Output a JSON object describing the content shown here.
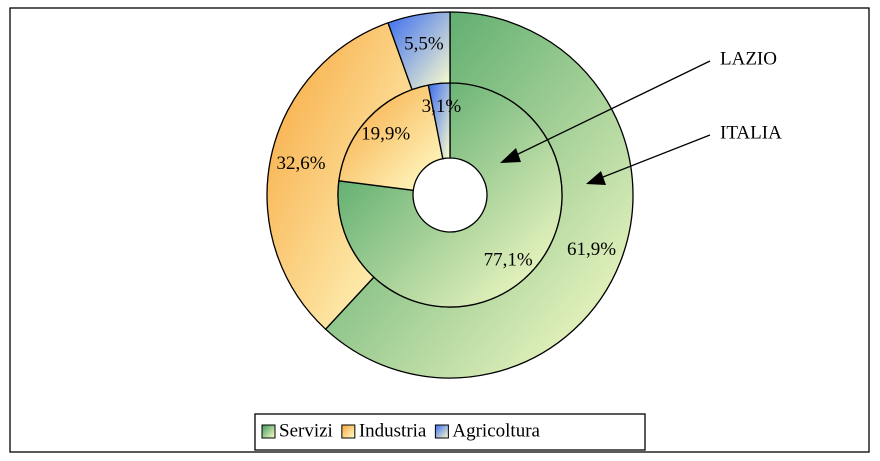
{
  "chart_data": {
    "type": "donut",
    "categories": [
      "Servizi",
      "Industria",
      "Agricoltura"
    ],
    "colors": [
      "#3a9a5a",
      "#f7a43a",
      "#3a6cf0"
    ],
    "series": [
      {
        "name": "ITALIA",
        "values": [
          61.9,
          32.6,
          5.5
        ],
        "value_labels": [
          "61,9%",
          "32,6%",
          "5,5%"
        ]
      },
      {
        "name": "LAZIO",
        "values": [
          77.1,
          19.9,
          3.1
        ],
        "value_labels": [
          "77,1%",
          "19,9%",
          "3,1%"
        ]
      }
    ],
    "legend": "bottom"
  }
}
